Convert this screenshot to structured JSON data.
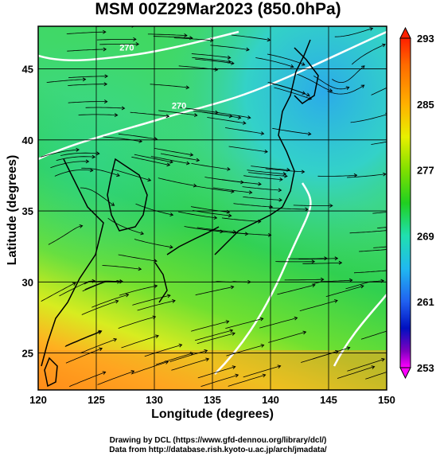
{
  "title": "MSM 00Z29Mar2023 (850.0hPa)",
  "axes": {
    "xlabel": "Longitude (degrees)",
    "ylabel": "Latitude  (degrees)",
    "x_ticks": [
      "120",
      "125",
      "130",
      "135",
      "140",
      "145",
      "150"
    ],
    "y_ticks": [
      "25",
      "30",
      "35",
      "40",
      "45"
    ]
  },
  "map": {
    "lon_range": [
      120,
      150
    ],
    "lat_range": [
      22.4,
      48
    ],
    "field": "temperature (K) with streamlines",
    "contour_labels": [
      "270",
      "270"
    ]
  },
  "colorbar": {
    "ticks": [
      "293",
      "285",
      "277",
      "269",
      "261",
      "253"
    ],
    "range": [
      253,
      293
    ]
  },
  "credits": {
    "line1": "Drawing by DCL (https://www.gfd-dennou.org/library/dcl/)",
    "line2": "Data from http://database.rish.kyoto-u.ac.jp/arch/jmadata/"
  },
  "colors": {
    "warm": "#ff8c00",
    "mild": "#f0e020",
    "green": "#3cd84a",
    "cool": "#30d8c8",
    "cold": "#28b0f0",
    "contour": "#ffffff"
  }
}
